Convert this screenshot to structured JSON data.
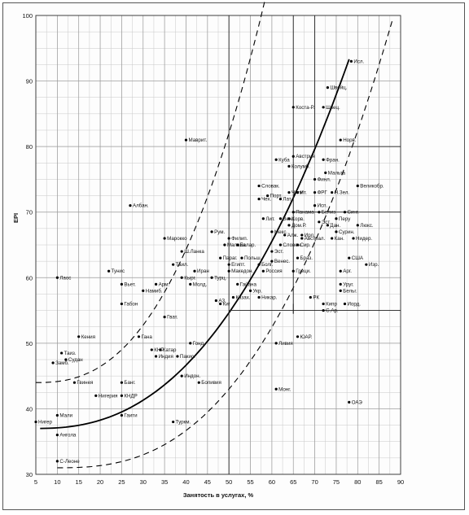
{
  "chart_data": {
    "type": "scatter",
    "title": "",
    "xlabel": "Занятость в услугах, %",
    "ylabel": "EPI",
    "xlim": [
      5,
      90
    ],
    "ylim": [
      30,
      100
    ],
    "x_ticks": [
      5,
      10,
      15,
      20,
      25,
      30,
      35,
      40,
      45,
      50,
      55,
      60,
      65,
      70,
      75,
      80,
      85,
      90
    ],
    "y_ticks": [
      30,
      40,
      50,
      60,
      70,
      80,
      90,
      100
    ],
    "grid": true,
    "series": [],
    "points": [
      {
        "label": "Исл.",
        "x": 78.5,
        "y": 93
      },
      {
        "label": "Швейц.",
        "x": 73,
        "y": 89
      },
      {
        "label": "Коста-Р.",
        "x": 65,
        "y": 86
      },
      {
        "label": "Швец.",
        "x": 72,
        "y": 86
      },
      {
        "label": "Маврит.",
        "x": 40,
        "y": 81
      },
      {
        "label": "Норв.",
        "x": 76,
        "y": 81
      },
      {
        "label": "Австрия",
        "x": 65,
        "y": 78.5
      },
      {
        "label": "Куба",
        "x": 61,
        "y": 78
      },
      {
        "label": "Фран.",
        "x": 72,
        "y": 78
      },
      {
        "label": "Колумб.",
        "x": 64,
        "y": 77
      },
      {
        "label": "Мальта",
        "x": 72.5,
        "y": 76
      },
      {
        "label": "Финл.",
        "x": 70,
        "y": 75
      },
      {
        "label": "Словак.",
        "x": 57,
        "y": 74
      },
      {
        "label": "Чили",
        "x": 64,
        "y": 73
      },
      {
        "label": "Ит.",
        "x": 66,
        "y": 73
      },
      {
        "label": "ФРГ",
        "x": 70,
        "y": 73
      },
      {
        "label": "Н.Зел.",
        "x": 74,
        "y": 73
      },
      {
        "label": "Великобр.",
        "x": 80,
        "y": 74
      },
      {
        "label": "Порт.",
        "x": 59,
        "y": 72.5
      },
      {
        "label": "Чех.",
        "x": 57,
        "y": 72
      },
      {
        "label": "Лат.",
        "x": 62,
        "y": 72
      },
      {
        "label": "Исп.",
        "x": 70,
        "y": 71
      },
      {
        "label": "Албан.",
        "x": 27,
        "y": 71
      },
      {
        "label": "Панама",
        "x": 65,
        "y": 70
      },
      {
        "label": "Белиз",
        "x": 71,
        "y": 70
      },
      {
        "label": "Синг.",
        "x": 77,
        "y": 70
      },
      {
        "label": "Лит.",
        "x": 58,
        "y": 69
      },
      {
        "label": "Венг.",
        "x": 62,
        "y": 69
      },
      {
        "label": "Хорв.",
        "x": 64,
        "y": 69
      },
      {
        "label": "Эст.",
        "x": 71,
        "y": 68.5
      },
      {
        "label": "Перу",
        "x": 75,
        "y": 69
      },
      {
        "label": "Люкс.",
        "x": 80,
        "y": 68
      },
      {
        "label": "Дом.Р.",
        "x": 64,
        "y": 68
      },
      {
        "label": "Дан.",
        "x": 73,
        "y": 68
      },
      {
        "label": "Сурин.",
        "x": 75,
        "y": 67
      },
      {
        "label": "Рум.",
        "x": 46,
        "y": 67
      },
      {
        "label": "Мекс.",
        "x": 60,
        "y": 67
      },
      {
        "label": "Алж.",
        "x": 63,
        "y": 66.5
      },
      {
        "label": "Ирл.",
        "x": 67,
        "y": 66.5
      },
      {
        "label": "Мароккo",
        "x": 35,
        "y": 66
      },
      {
        "label": "Филип.",
        "x": 50,
        "y": 66
      },
      {
        "label": "Австрал.",
        "x": 67,
        "y": 66
      },
      {
        "label": "Кан.",
        "x": 74,
        "y": 66
      },
      {
        "label": "Нидер.",
        "x": 79,
        "y": 66
      },
      {
        "label": "Малайз.",
        "x": 49,
        "y": 65
      },
      {
        "label": "Белар.",
        "x": 52,
        "y": 65
      },
      {
        "label": "Словен.",
        "x": 62,
        "y": 65
      },
      {
        "label": "Сир.",
        "x": 66,
        "y": 65
      },
      {
        "label": "Ш.Ланка",
        "x": 39,
        "y": 64
      },
      {
        "label": "Эст.",
        "x": 60,
        "y": 64
      },
      {
        "label": "Параг.",
        "x": 48,
        "y": 63
      },
      {
        "label": "Польш.",
        "x": 53,
        "y": 63
      },
      {
        "label": "Венес.",
        "x": 60,
        "y": 62.5
      },
      {
        "label": "Браз.",
        "x": 66,
        "y": 63
      },
      {
        "label": "США",
        "x": 78,
        "y": 63
      },
      {
        "label": "Тунис",
        "x": 22,
        "y": 61
      },
      {
        "label": "Таил.",
        "x": 37,
        "y": 62
      },
      {
        "label": "Египт.",
        "x": 50,
        "y": 62
      },
      {
        "label": "Болг.",
        "x": 57,
        "y": 62
      },
      {
        "label": "Изр.",
        "x": 82,
        "y": 62
      },
      {
        "label": "Лаос",
        "x": 10,
        "y": 60
      },
      {
        "label": "Кырг.",
        "x": 39,
        "y": 60
      },
      {
        "label": "Иран",
        "x": 42,
        "y": 61
      },
      {
        "label": "Македон.",
        "x": 50,
        "y": 61
      },
      {
        "label": "Россия",
        "x": 58,
        "y": 61
      },
      {
        "label": "Греци.",
        "x": 65,
        "y": 61
      },
      {
        "label": "Арг.",
        "x": 76,
        "y": 61
      },
      {
        "label": "Вьет.",
        "x": 25,
        "y": 59
      },
      {
        "label": "Арм.",
        "x": 33,
        "y": 59
      },
      {
        "label": "Турц.",
        "x": 46,
        "y": 60
      },
      {
        "label": "Гайана",
        "x": 52,
        "y": 59
      },
      {
        "label": "Уруг.",
        "x": 76,
        "y": 59
      },
      {
        "label": "Намиб.",
        "x": 30,
        "y": 58
      },
      {
        "label": "Молд.",
        "x": 41,
        "y": 59
      },
      {
        "label": "Укр.",
        "x": 55,
        "y": 58
      },
      {
        "label": "Бельг.",
        "x": 76,
        "y": 58
      },
      {
        "label": "Казах.",
        "x": 51,
        "y": 57
      },
      {
        "label": "АЗ.",
        "x": 47,
        "y": 56.5
      },
      {
        "label": "Никар.",
        "x": 57,
        "y": 57
      },
      {
        "label": "РК",
        "x": 69,
        "y": 57
      },
      {
        "label": "Габон",
        "x": 25,
        "y": 56
      },
      {
        "label": "Киг",
        "x": 48,
        "y": 56
      },
      {
        "label": "Кипр",
        "x": 72,
        "y": 56
      },
      {
        "label": "Иорд.",
        "x": 77,
        "y": 56
      },
      {
        "label": "С.Ар.",
        "x": 72,
        "y": 55
      },
      {
        "label": "Гват.",
        "x": 35,
        "y": 54
      },
      {
        "label": "Кения",
        "x": 15,
        "y": 51
      },
      {
        "label": "Гана",
        "x": 29,
        "y": 51
      },
      {
        "label": "ЮАР.",
        "x": 66,
        "y": 51
      },
      {
        "label": "Гонд.",
        "x": 41,
        "y": 50
      },
      {
        "label": "Ливия",
        "x": 61,
        "y": 50
      },
      {
        "label": "Таиз.",
        "x": 11,
        "y": 48.5
      },
      {
        "label": "КНР",
        "x": 32,
        "y": 49
      },
      {
        "label": "Катар",
        "x": 34,
        "y": 49
      },
      {
        "label": "Судан",
        "x": 12,
        "y": 47.5
      },
      {
        "label": "Замб.",
        "x": 9,
        "y": 47
      },
      {
        "label": "Индия",
        "x": 33,
        "y": 48
      },
      {
        "label": "Пакис.",
        "x": 38,
        "y": 48
      },
      {
        "label": "Гвинея",
        "x": 14,
        "y": 44
      },
      {
        "label": "Банг.",
        "x": 25,
        "y": 44
      },
      {
        "label": "Индон.",
        "x": 39,
        "y": 45
      },
      {
        "label": "Боливия",
        "x": 43,
        "y": 44
      },
      {
        "label": "Монг.",
        "x": 61,
        "y": 43
      },
      {
        "label": "Нигерия",
        "x": 19,
        "y": 42
      },
      {
        "label": "КНДР",
        "x": 25,
        "y": 42
      },
      {
        "label": "ОАЭ",
        "x": 78,
        "y": 41
      },
      {
        "label": "Мали",
        "x": 10,
        "y": 39
      },
      {
        "label": "Гаити",
        "x": 25,
        "y": 39
      },
      {
        "label": "Нигер",
        "x": 5,
        "y": 38
      },
      {
        "label": "Туркм.",
        "x": 37,
        "y": 38
      },
      {
        "label": "Ангола",
        "x": 10,
        "y": 36
      },
      {
        "label": "С-Леоне",
        "x": 10,
        "y": 32
      }
    ]
  }
}
